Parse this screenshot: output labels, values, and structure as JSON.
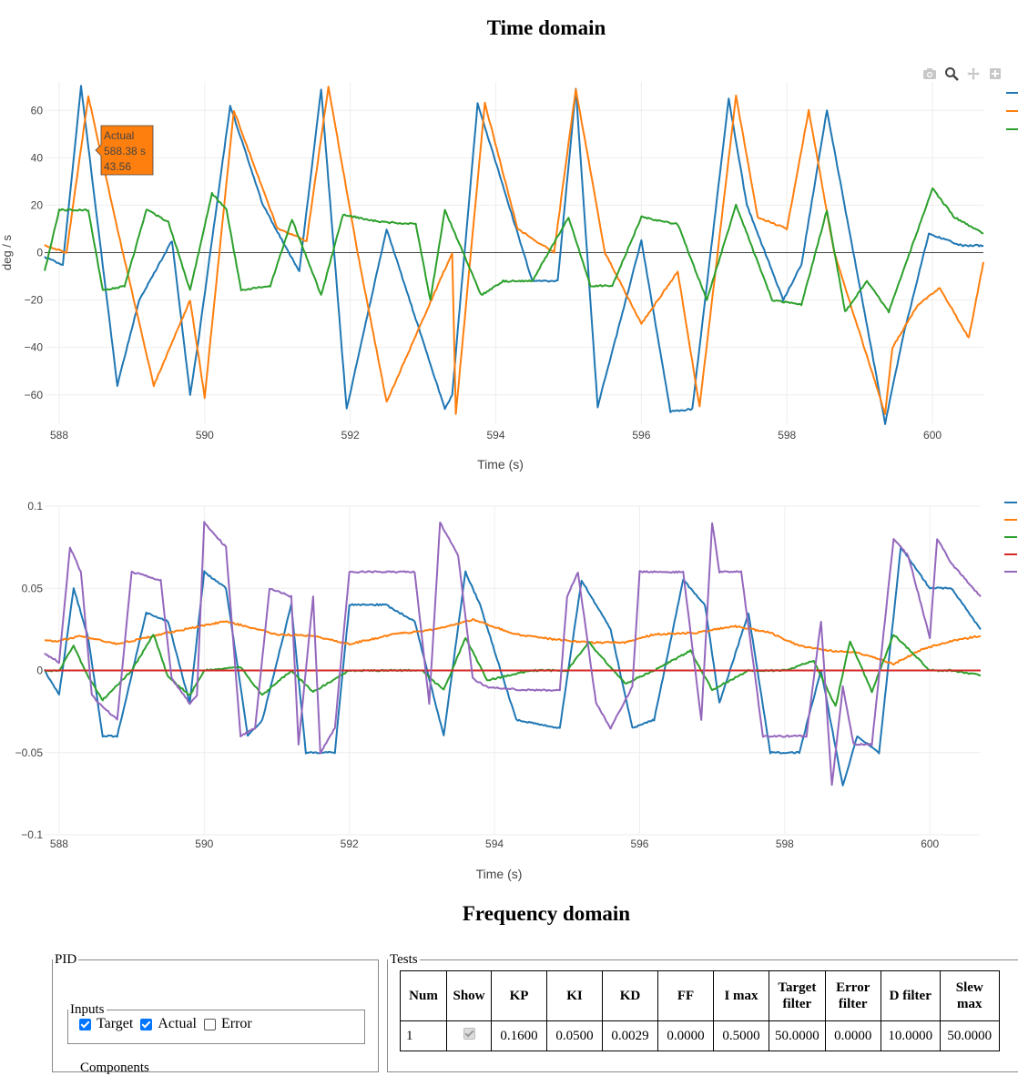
{
  "headings": {
    "time_domain": "Time domain",
    "frequency_domain": "Frequency domain"
  },
  "modebar": [
    "camera-icon",
    "zoom-icon",
    "pan-icon",
    "zoom-in-icon"
  ],
  "chart_data": [
    {
      "type": "line",
      "xlabel": "Time (s)",
      "ylabel": "deg / s",
      "xlim": [
        587.8,
        600.7
      ],
      "ylim": [
        -72,
        72
      ],
      "xticks": [
        588,
        590,
        592,
        594,
        596,
        598,
        600
      ],
      "yticks": [
        -60,
        -40,
        -20,
        0,
        20,
        40,
        60
      ],
      "ytick_labels": [
        "−60",
        "−40",
        "−20",
        "0",
        "20",
        "40",
        "60"
      ],
      "grid": true,
      "legend": "right, labels cropped",
      "series": [
        {
          "color": "#1f77b4",
          "x": [
            587.8,
            588.05,
            588.3,
            588.8,
            589.1,
            589.55,
            589.8,
            589.9,
            590.35,
            590.8,
            591.3,
            591.6,
            591.95,
            592.5,
            593.3,
            593.4,
            593.75,
            594.5,
            594.85,
            595.1,
            595.4,
            596.0,
            596.4,
            596.7,
            597.2,
            597.45,
            597.95,
            598.2,
            598.55,
            599.35,
            599.6,
            599.95,
            600.4,
            600.7
          ],
          "y": [
            -2,
            -5,
            70,
            -56,
            -20,
            5,
            -60,
            -40,
            62,
            20,
            -8,
            69,
            -66,
            10,
            -66,
            -60,
            63,
            -12,
            -12,
            69,
            -65,
            5,
            -67,
            -66,
            65,
            20,
            -20,
            -5,
            60,
            -72,
            -35,
            8,
            3,
            3
          ]
        },
        {
          "color": "#ff7f0e",
          "x": [
            587.8,
            588.1,
            588.4,
            588.8,
            589.3,
            589.8,
            590.0,
            590.4,
            591.0,
            591.4,
            591.7,
            592.1,
            592.5,
            593.4,
            593.45,
            593.85,
            594.3,
            594.8,
            595.1,
            595.5,
            596.0,
            596.5,
            596.8,
            597.3,
            597.6,
            598.0,
            598.3,
            598.65,
            599.35,
            599.45,
            599.8,
            600.1,
            600.5,
            600.7
          ],
          "y": [
            3,
            0,
            66,
            10,
            -56,
            -20,
            -61,
            60,
            10,
            5,
            70,
            0,
            -63,
            0,
            -68,
            63,
            10,
            0,
            69,
            0,
            -30,
            -8,
            -65,
            66,
            15,
            10,
            60,
            0,
            -68,
            -40,
            -22,
            -15,
            -36,
            -4
          ]
        },
        {
          "color": "#2ca02c",
          "x": [
            587.8,
            588.0,
            588.4,
            588.6,
            588.9,
            589.2,
            589.5,
            589.8,
            590.1,
            590.3,
            590.5,
            590.9,
            591.2,
            591.6,
            591.9,
            592.4,
            592.9,
            593.1,
            593.3,
            593.8,
            594.1,
            594.5,
            595.0,
            595.3,
            595.6,
            596.0,
            596.5,
            596.9,
            597.3,
            597.8,
            598.2,
            598.55,
            598.8,
            599.1,
            599.4,
            600.0,
            600.3,
            600.7
          ],
          "y": [
            -8,
            18,
            18,
            -16,
            -14,
            18,
            13,
            -16,
            25,
            18,
            -16,
            -14,
            14,
            -18,
            16,
            13,
            12,
            -20,
            18,
            -18,
            -12,
            -12,
            15,
            -14,
            -14,
            15,
            12,
            -20,
            20,
            -20,
            -22,
            18,
            -25,
            -12,
            -25,
            27,
            15,
            8
          ]
        }
      ]
    },
    {
      "type": "line",
      "xlabel": "Time (s)",
      "ylabel": "",
      "xlim": [
        587.8,
        600.7
      ],
      "ylim": [
        -0.1,
        0.1
      ],
      "xticks": [
        588,
        590,
        592,
        594,
        596,
        598,
        600
      ],
      "yticks": [
        -0.1,
        -0.05,
        0,
        0.05,
        0.1
      ],
      "ytick_labels": [
        "−0.1",
        "−0.05",
        "0",
        "0.05",
        "0.1"
      ],
      "grid": true,
      "legend": "right, labels cropped",
      "series": [
        {
          "color": "#1f77b4",
          "x": [
            587.8,
            588.0,
            588.2,
            588.4,
            588.6,
            588.8,
            589.2,
            589.5,
            589.8,
            590.0,
            590.3,
            590.6,
            590.8,
            591.2,
            591.4,
            591.8,
            592.0,
            592.5,
            592.9,
            593.3,
            593.6,
            593.8,
            594.3,
            594.9,
            595.2,
            595.6,
            595.9,
            596.2,
            596.6,
            596.9,
            597.1,
            597.5,
            597.8,
            598.2,
            598.5,
            598.8,
            599.0,
            599.3,
            599.6,
            600.0,
            600.3,
            600.7
          ],
          "y": [
            0,
            -0.015,
            0.05,
            0.02,
            -0.04,
            -0.04,
            0.035,
            0.03,
            -0.02,
            0.06,
            0.05,
            -0.04,
            -0.03,
            0.04,
            -0.05,
            -0.05,
            0.04,
            0.04,
            0.03,
            -0.04,
            0.06,
            0.04,
            -0.03,
            -0.035,
            0.055,
            0.025,
            -0.035,
            -0.03,
            0.055,
            0.04,
            -0.02,
            0.035,
            -0.05,
            -0.05,
            0.0,
            -0.07,
            -0.04,
            -0.05,
            0.075,
            0.05,
            0.05,
            0.025
          ]
        },
        {
          "color": "#ff7f0e",
          "x": [
            587.8,
            588.0,
            588.3,
            588.8,
            589.5,
            590.3,
            591.0,
            591.5,
            592.0,
            592.6,
            593.2,
            593.7,
            594.3,
            594.8,
            595.3,
            595.8,
            596.2,
            596.8,
            597.3,
            597.8,
            598.2,
            598.6,
            599.0,
            599.5,
            599.9,
            600.3,
            600.7
          ],
          "y": [
            0.018,
            0.018,
            0.021,
            0.016,
            0.023,
            0.03,
            0.022,
            0.021,
            0.016,
            0.022,
            0.025,
            0.031,
            0.022,
            0.019,
            0.017,
            0.017,
            0.022,
            0.023,
            0.027,
            0.023,
            0.015,
            0.012,
            0.011,
            0.004,
            0.013,
            0.018,
            0.021
          ]
        },
        {
          "color": "#2ca02c",
          "x": [
            587.8,
            588.0,
            588.2,
            588.4,
            588.6,
            589.0,
            589.3,
            589.5,
            589.8,
            590.0,
            590.5,
            590.8,
            591.2,
            591.5,
            592.0,
            592.5,
            593.0,
            593.3,
            593.6,
            593.9,
            594.5,
            595.0,
            595.3,
            595.8,
            596.2,
            596.7,
            597.0,
            597.5,
            598.0,
            598.4,
            598.7,
            598.9,
            599.2,
            599.5,
            600.0,
            600.3,
            600.7
          ],
          "y": [
            0.0,
            0.0,
            0.015,
            -0.004,
            -0.018,
            0.0,
            0.022,
            -0.004,
            -0.015,
            0.0,
            0.002,
            -0.015,
            0.0,
            -0.013,
            0.0,
            0.0,
            0.0,
            -0.012,
            0.02,
            -0.006,
            0.0,
            0.0,
            0.017,
            -0.008,
            0.0,
            0.012,
            -0.012,
            0.0,
            0.0,
            0.006,
            -0.022,
            0.018,
            -0.013,
            0.022,
            0.0,
            0.0,
            -0.003
          ]
        },
        {
          "color": "#d62728",
          "x": [
            587.8,
            600.7
          ],
          "y": [
            0.0,
            0.0
          ]
        },
        {
          "color": "#9467bd",
          "x": [
            587.8,
            588.0,
            588.15,
            588.3,
            588.45,
            588.55,
            588.8,
            589.0,
            589.4,
            589.55,
            589.8,
            589.9,
            590.0,
            590.3,
            590.5,
            590.7,
            590.9,
            591.2,
            591.3,
            591.5,
            591.6,
            591.8,
            592.0,
            592.4,
            592.9,
            593.1,
            593.25,
            593.5,
            593.7,
            593.9,
            594.4,
            594.9,
            595.0,
            595.15,
            595.4,
            595.6,
            595.9,
            596.0,
            596.2,
            596.6,
            596.85,
            597.0,
            597.1,
            597.4,
            597.7,
            597.9,
            598.3,
            598.5,
            598.65,
            598.8,
            598.95,
            599.2,
            599.5,
            599.7,
            600.0,
            600.1,
            600.3,
            600.7
          ],
          "y": [
            0.01,
            0.005,
            0.075,
            0.06,
            -0.015,
            -0.02,
            -0.03,
            0.06,
            0.055,
            -0.005,
            -0.02,
            -0.015,
            0.09,
            0.075,
            -0.04,
            -0.035,
            0.05,
            0.045,
            -0.045,
            0.045,
            -0.05,
            -0.035,
            0.06,
            0.06,
            0.06,
            -0.02,
            0.09,
            0.07,
            -0.005,
            -0.01,
            -0.012,
            -0.012,
            0.045,
            0.06,
            -0.02,
            -0.035,
            -0.01,
            0.06,
            0.06,
            0.06,
            -0.03,
            0.09,
            0.06,
            0.06,
            -0.04,
            -0.04,
            -0.04,
            0.03,
            -0.07,
            -0.01,
            -0.045,
            -0.045,
            0.08,
            0.07,
            0.02,
            0.08,
            0.065,
            0.045
          ]
        }
      ]
    }
  ],
  "hover": {
    "name": "Actual",
    "x": "588.38 s",
    "y": "43.56",
    "color": "#ff7f0e"
  },
  "pid_panel": {
    "legend": "PID",
    "inputs_legend": "Inputs",
    "checkboxes": [
      {
        "label": "Target",
        "checked": true
      },
      {
        "label": "Actual",
        "checked": true
      },
      {
        "label": "Error",
        "checked": false
      }
    ],
    "components_legend": "Components"
  },
  "tests_panel": {
    "legend": "Tests",
    "headers": [
      "Num",
      "Show",
      "KP",
      "KI",
      "KD",
      "FF",
      "I max",
      "Target filter",
      "Error filter",
      "D filter",
      "Slew max"
    ],
    "rows": [
      {
        "num": "1",
        "show": true,
        "values": [
          "0.1600",
          "0.0500",
          "0.0029",
          "0.0000",
          "0.5000",
          "50.0000",
          "0.0000",
          "10.0000",
          "50.0000"
        ]
      }
    ]
  }
}
